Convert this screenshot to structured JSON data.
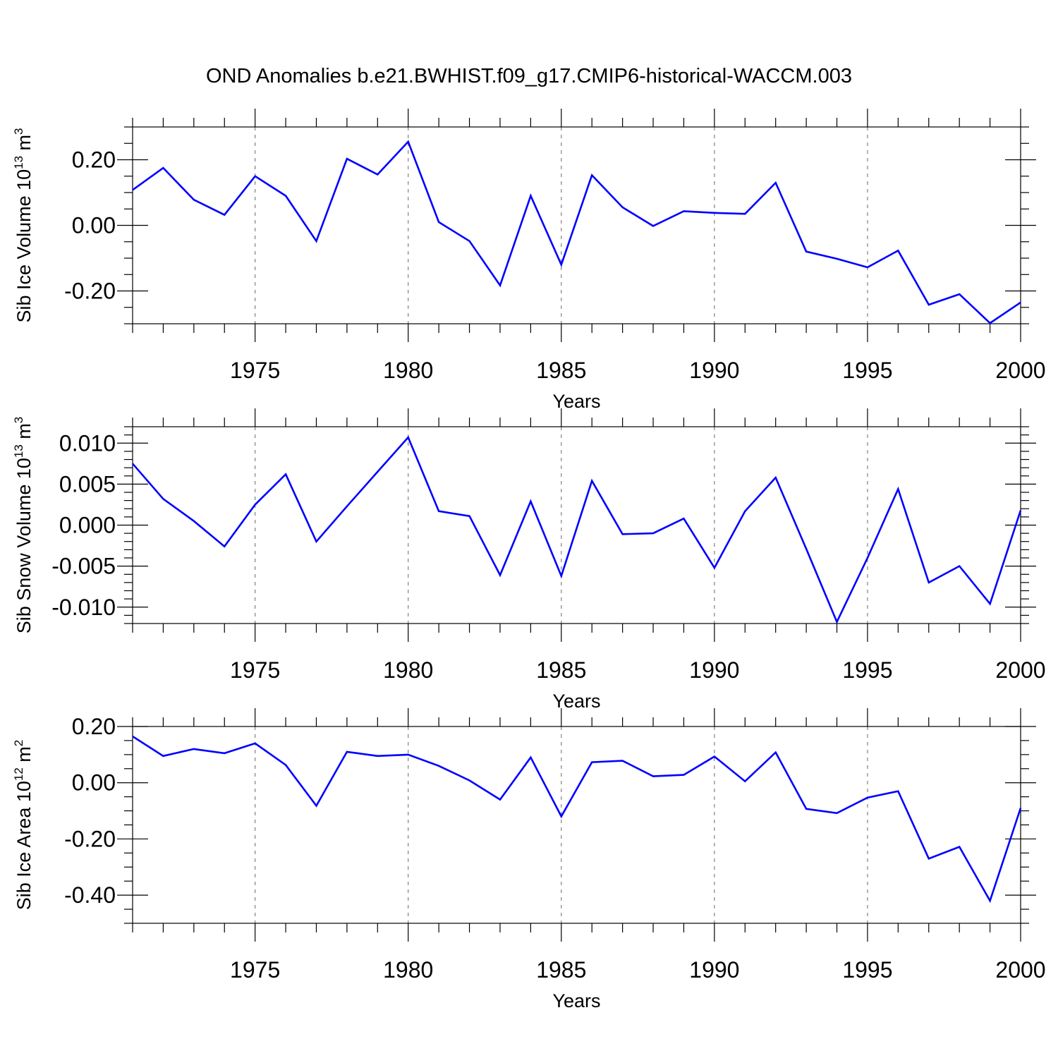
{
  "title": "OND Anomalies b.e21.BWHIST.f09_g17.CMIP6-historical-WACCM.003",
  "colors": {
    "line": "#0000ff",
    "grid": "#808080",
    "axis": "#000000"
  },
  "chart_data": [
    {
      "type": "line",
      "ylabel": {
        "prefix": "Sib Ice Volume 10",
        "exponent": "13",
        "unit": " m",
        "unit_exponent": "3"
      },
      "xlabel": "Years",
      "xlim": [
        1971,
        2000
      ],
      "ylim": [
        -0.3,
        0.3
      ],
      "yticks": [
        -0.2,
        0.0,
        0.2
      ],
      "ytick_labels": [
        "-0.20",
        "0.00",
        "0.20"
      ],
      "yminor_step": 0.05,
      "xticks": [
        1975,
        1980,
        1985,
        1990,
        1995,
        2000
      ],
      "xtick_labels": [
        "1975",
        "1980",
        "1985",
        "1990",
        "1995",
        "2000"
      ],
      "grid": "vertical dashed at major x ticks",
      "x": [
        1971,
        1972,
        1973,
        1974,
        1975,
        1976,
        1977,
        1978,
        1979,
        1980,
        1981,
        1982,
        1983,
        1984,
        1985,
        1986,
        1987,
        1988,
        1989,
        1990,
        1991,
        1992,
        1993,
        1994,
        1995,
        1996,
        1997,
        1998,
        1999,
        2000
      ],
      "values": [
        0.108,
        0.175,
        0.078,
        0.032,
        0.15,
        0.09,
        -0.048,
        0.203,
        0.155,
        0.255,
        0.01,
        -0.048,
        -0.183,
        0.09,
        -0.12,
        0.153,
        0.055,
        -0.002,
        0.043,
        0.038,
        0.035,
        0.13,
        -0.08,
        -0.102,
        -0.128,
        -0.077,
        -0.242,
        -0.21,
        -0.298,
        -0.235
      ]
    },
    {
      "type": "line",
      "ylabel": {
        "prefix": "Sib Snow Volume 10",
        "exponent": "13",
        "unit": " m",
        "unit_exponent": "3"
      },
      "xlabel": "Years",
      "xlim": [
        1971,
        2000
      ],
      "ylim": [
        -0.012,
        0.012
      ],
      "yticks": [
        -0.01,
        -0.005,
        0.0,
        0.005,
        0.01
      ],
      "ytick_labels": [
        "-0.010",
        "-0.005",
        "0.000",
        "0.005",
        "0.010"
      ],
      "yminor_step": 0.001,
      "xticks": [
        1975,
        1980,
        1985,
        1990,
        1995,
        2000
      ],
      "xtick_labels": [
        "1975",
        "1980",
        "1985",
        "1990",
        "1995",
        "2000"
      ],
      "grid": "vertical dashed at major x ticks",
      "x": [
        1971,
        1972,
        1973,
        1974,
        1975,
        1976,
        1977,
        1978,
        1979,
        1980,
        1981,
        1982,
        1983,
        1984,
        1985,
        1986,
        1987,
        1988,
        1989,
        1990,
        1991,
        1992,
        1993,
        1994,
        1995,
        1996,
        1997,
        1998,
        1999,
        2000
      ],
      "values": [
        0.0075,
        0.0032,
        0.0005,
        -0.0026,
        0.0025,
        0.0062,
        -0.002,
        0.0023,
        0.0065,
        0.0107,
        0.0017,
        0.0011,
        -0.0061,
        0.0029,
        -0.0062,
        0.0054,
        -0.0011,
        -0.001,
        0.0008,
        -0.0052,
        0.0017,
        0.0058,
        -0.0029,
        -0.0118,
        -0.004,
        0.0044,
        -0.007,
        -0.005,
        -0.0096,
        0.0018
      ]
    },
    {
      "type": "line",
      "ylabel": {
        "prefix": "Sib Ice Area 10",
        "exponent": "12",
        "unit": " m",
        "unit_exponent": "2"
      },
      "xlabel": "Years",
      "xlim": [
        1971,
        2000
      ],
      "ylim": [
        -0.5,
        0.2
      ],
      "yticks": [
        -0.4,
        -0.2,
        0.0,
        0.2
      ],
      "ytick_labels": [
        "-0.40",
        "-0.20",
        "0.00",
        "0.20"
      ],
      "yminor_step": 0.05,
      "xticks": [
        1975,
        1980,
        1985,
        1990,
        1995,
        2000
      ],
      "xtick_labels": [
        "1975",
        "1980",
        "1985",
        "1990",
        "1995",
        "2000"
      ],
      "grid": "vertical dashed at major x ticks",
      "x": [
        1971,
        1972,
        1973,
        1974,
        1975,
        1976,
        1977,
        1978,
        1979,
        1980,
        1981,
        1982,
        1983,
        1984,
        1985,
        1986,
        1987,
        1988,
        1989,
        1990,
        1991,
        1992,
        1993,
        1994,
        1995,
        1996,
        1997,
        1998,
        1999,
        2000
      ],
      "values": [
        0.165,
        0.095,
        0.12,
        0.105,
        0.14,
        0.063,
        -0.082,
        0.11,
        0.095,
        0.1,
        0.06,
        0.008,
        -0.06,
        0.09,
        -0.12,
        0.073,
        0.078,
        0.023,
        0.028,
        0.093,
        0.005,
        0.108,
        -0.093,
        -0.108,
        -0.053,
        -0.03,
        -0.27,
        -0.228,
        -0.42,
        -0.09
      ]
    }
  ]
}
